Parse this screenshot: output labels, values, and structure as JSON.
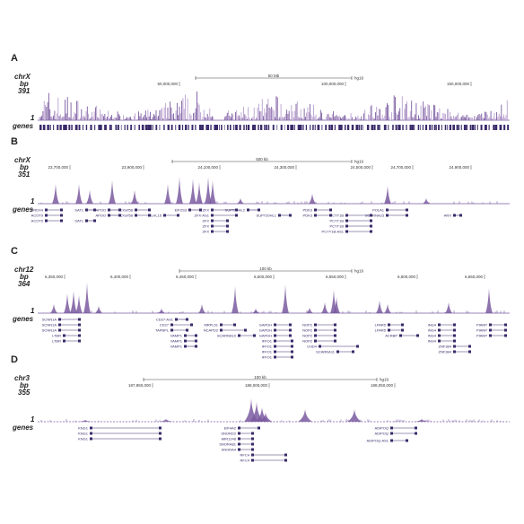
{
  "panels": [
    {
      "label": "A",
      "chrom": "chrX",
      "unit": "bp",
      "max": 391,
      "min": 1,
      "track": "genes",
      "scale": "50 Mb",
      "assembly": "hg19",
      "coords": [
        "50,000,000",
        "100,000,000",
        "150,000,000"
      ],
      "genes": []
    },
    {
      "label": "B",
      "chrom": "chrX",
      "unit": "bp",
      "max": 351,
      "min": 1,
      "track": "genes",
      "scale": "500 kb",
      "assembly": "hg19",
      "coords": [
        "23,700,000",
        "23,900,000",
        "24,100,000",
        "24,300,000",
        "24,500,000",
        "24,700,000",
        "24,900,000"
      ],
      "genes": [
        "PRDX4",
        "ACOT9",
        "ACOT9",
        "SAT1",
        "SAT1",
        "APOO",
        "APOO",
        "CXorf58",
        "CXorf58",
        "KLHL15",
        "EIF2S3",
        "ZFX",
        "ZFX-AS1",
        "ZFX",
        "ZFX",
        "ZFX",
        "SUPT20HL2",
        "SUPT20HL1",
        "PDK3",
        "PDK3",
        "PCYT1B",
        "PCYT1B",
        "PCYT1B",
        "PCYT1B-AS1",
        "POLA1",
        "SCARNA23",
        "ARX"
      ]
    },
    {
      "label": "C",
      "chrom": "chr12",
      "unit": "bp",
      "max": 364,
      "min": 1,
      "track": "genes",
      "scale": "100 kb",
      "assembly": "hg19",
      "coords": [
        "6,350,000",
        "6,400,000",
        "6,450,000",
        "6,500,000",
        "6,550,000",
        "6,600,000",
        "6,650,000"
      ],
      "genes": [
        "SCNN1A",
        "SCNN1A",
        "SCNN1A",
        "LTBR",
        "LTBR",
        "CD27-AS1",
        "CD27",
        "TAPBPL",
        "VAMP1",
        "VAMP1",
        "VAMP1",
        "MRPL51",
        "NCAPD2",
        "SCARNA10",
        "GAPDH",
        "GAPDH",
        "GAPDH",
        "IFFO1",
        "IFFO1",
        "IFFO1",
        "IFFO1",
        "NOP2",
        "NOP2",
        "NOP2",
        "NOP2",
        "CHD4",
        "SCARNA11",
        "LPAR5",
        "LPAR5",
        "ACRBP",
        "ING4",
        "ING4",
        "ING4",
        "ING4",
        "ZNF384",
        "ZNF384",
        "PIANP",
        "PIANP",
        "PIANP"
      ]
    },
    {
      "label": "D",
      "chrom": "chr3",
      "unit": "bp",
      "max": 355,
      "min": 1,
      "track": "genes",
      "scale": "100 kb",
      "assembly": "hg19",
      "coords": [
        "187,950,000",
        "188,000,000",
        "188,050,000"
      ],
      "genes": [
        "KNG1",
        "KNG1",
        "KNG1",
        "EIF4A2",
        "SNORD2",
        "MIR1248",
        "SNORA81",
        "SNORA4",
        "RFC4",
        "RFC4",
        "ADIPOQ",
        "ADIPOQ",
        "ADIPOQ-AS1"
      ]
    }
  ]
}
